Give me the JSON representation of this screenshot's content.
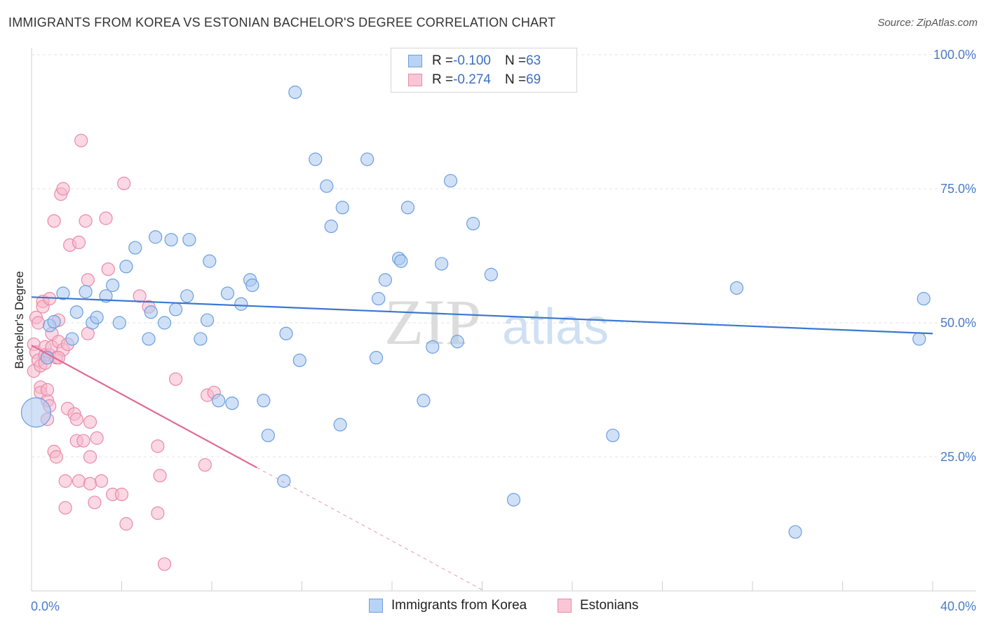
{
  "title": "IMMIGRANTS FROM KOREA VS ESTONIAN BACHELOR'S DEGREE CORRELATION CHART",
  "source": "Source: ZipAtlas.com",
  "watermark": {
    "zip": "ZIP",
    "atlas": "atlas"
  },
  "legend": {
    "rows": [
      {
        "r_label": "R = ",
        "r_value": "-0.100",
        "n_label": "N = ",
        "n_value": "63"
      },
      {
        "r_label": "R = ",
        "r_value": "-0.274",
        "n_label": "N = ",
        "n_value": "69"
      }
    ]
  },
  "colors": {
    "korea_fill": "#a9c8f0",
    "korea_stroke": "#6b9ee0",
    "korea_line": "#3a78d0",
    "eston_fill": "#f7b8cc",
    "eston_stroke": "#e88aa8",
    "eston_line": "#e06a94",
    "grid": "#e3e3e3",
    "axis_text": "#4a7cc9"
  },
  "chart_data": {
    "type": "scatter",
    "title": "IMMIGRANTS FROM KOREA VS ESTONIAN BACHELOR'S DEGREE CORRELATION CHART",
    "xlabel": "",
    "ylabel": "Bachelor's Degree",
    "xlim": [
      0,
      40
    ],
    "ylim": [
      0,
      100
    ],
    "x_tick_labels": [
      "0.0%",
      "40.0%"
    ],
    "y_tick_labels": [
      "25.0%",
      "50.0%",
      "75.0%",
      "100.0%"
    ],
    "y_ticks": [
      25,
      50,
      75,
      100
    ],
    "grid": true,
    "legend_position": "top-center",
    "series": [
      {
        "name": "Immigrants from Korea",
        "points": [
          [
            0.2,
            33.3
          ],
          [
            0.7,
            43.5
          ],
          [
            0.8,
            49.5
          ],
          [
            1.0,
            50.2
          ],
          [
            1.4,
            55.5
          ],
          [
            1.8,
            47.0
          ],
          [
            2.0,
            52.0
          ],
          [
            2.4,
            55.8
          ],
          [
            2.7,
            50.0
          ],
          [
            2.9,
            51.0
          ],
          [
            3.3,
            55.0
          ],
          [
            3.6,
            57.0
          ],
          [
            3.9,
            50.0
          ],
          [
            4.2,
            60.5
          ],
          [
            4.6,
            64.0
          ],
          [
            5.2,
            47.0
          ],
          [
            5.3,
            52.0
          ],
          [
            5.5,
            66.0
          ],
          [
            5.9,
            50.0
          ],
          [
            6.2,
            65.5
          ],
          [
            6.4,
            52.5
          ],
          [
            6.9,
            55.0
          ],
          [
            7.0,
            65.5
          ],
          [
            7.5,
            47.0
          ],
          [
            7.8,
            50.5
          ],
          [
            7.9,
            61.5
          ],
          [
            8.3,
            35.5
          ],
          [
            8.7,
            55.5
          ],
          [
            8.9,
            35.0
          ],
          [
            9.3,
            53.5
          ],
          [
            9.7,
            58.0
          ],
          [
            9.8,
            57.0
          ],
          [
            10.3,
            35.5
          ],
          [
            10.5,
            29.0
          ],
          [
            11.2,
            20.5
          ],
          [
            11.3,
            48.0
          ],
          [
            11.7,
            93.0
          ],
          [
            11.9,
            43.0
          ],
          [
            12.6,
            80.5
          ],
          [
            13.1,
            75.5
          ],
          [
            13.3,
            68.0
          ],
          [
            13.7,
            31.0
          ],
          [
            13.8,
            71.5
          ],
          [
            14.9,
            80.5
          ],
          [
            15.3,
            43.5
          ],
          [
            15.4,
            54.5
          ],
          [
            15.7,
            58.0
          ],
          [
            16.3,
            62.0
          ],
          [
            16.4,
            61.5
          ],
          [
            16.7,
            71.5
          ],
          [
            17.4,
            35.5
          ],
          [
            17.8,
            45.5
          ],
          [
            18.2,
            61.0
          ],
          [
            18.6,
            76.5
          ],
          [
            18.9,
            46.5
          ],
          [
            19.6,
            68.5
          ],
          [
            20.4,
            59.0
          ],
          [
            21.4,
            17.0
          ],
          [
            25.8,
            29.0
          ],
          [
            31.3,
            56.5
          ],
          [
            33.9,
            11.0
          ],
          [
            39.4,
            47.0
          ],
          [
            39.6,
            54.5
          ]
        ],
        "sizes": [
          44,
          20,
          20,
          20,
          20,
          20,
          20,
          20,
          20,
          20,
          20,
          20,
          20,
          20,
          20,
          20,
          20,
          20,
          20,
          20,
          20,
          20,
          20,
          20,
          20,
          20,
          20,
          20,
          20,
          20,
          20,
          20,
          20,
          20,
          20,
          20,
          20,
          20,
          20,
          20,
          20,
          20,
          20,
          20,
          20,
          20,
          20,
          20,
          20,
          20,
          20,
          20,
          20,
          20,
          20,
          20,
          20,
          20,
          20,
          20,
          20,
          20,
          20
        ],
        "trend": {
          "x": [
            0,
            40
          ],
          "y": [
            54.8,
            48.0
          ]
        }
      },
      {
        "name": "Estonians",
        "points": [
          [
            0.1,
            41.0
          ],
          [
            0.1,
            46.0
          ],
          [
            0.2,
            44.5
          ],
          [
            0.2,
            51.0
          ],
          [
            0.3,
            50.0
          ],
          [
            0.3,
            43.0
          ],
          [
            0.4,
            42.0
          ],
          [
            0.4,
            38.0
          ],
          [
            0.4,
            37.0
          ],
          [
            0.5,
            54.0
          ],
          [
            0.5,
            53.0
          ],
          [
            0.6,
            45.5
          ],
          [
            0.6,
            44.0
          ],
          [
            0.7,
            35.5
          ],
          [
            0.7,
            37.5
          ],
          [
            0.7,
            32.0
          ],
          [
            0.8,
            34.5
          ],
          [
            0.8,
            44.0
          ],
          [
            0.8,
            54.5
          ],
          [
            0.9,
            48.0
          ],
          [
            0.9,
            45.5
          ],
          [
            1.0,
            69.0
          ],
          [
            1.0,
            26.0
          ],
          [
            1.1,
            25.0
          ],
          [
            1.1,
            43.5
          ],
          [
            1.2,
            46.5
          ],
          [
            1.2,
            50.5
          ],
          [
            1.3,
            74.0
          ],
          [
            1.4,
            75.0
          ],
          [
            1.4,
            45.0
          ],
          [
            1.5,
            15.5
          ],
          [
            1.5,
            20.5
          ],
          [
            1.6,
            46.0
          ],
          [
            1.6,
            34.0
          ],
          [
            1.7,
            64.5
          ],
          [
            1.9,
            33.0
          ],
          [
            2.0,
            28.0
          ],
          [
            2.0,
            32.0
          ],
          [
            2.1,
            20.5
          ],
          [
            2.1,
            65.0
          ],
          [
            2.2,
            84.0
          ],
          [
            2.3,
            28.0
          ],
          [
            2.4,
            69.0
          ],
          [
            2.5,
            48.0
          ],
          [
            2.5,
            58.0
          ],
          [
            2.6,
            20.0
          ],
          [
            2.6,
            25.0
          ],
          [
            2.6,
            31.5
          ],
          [
            2.8,
            16.5
          ],
          [
            2.9,
            28.5
          ],
          [
            3.1,
            20.5
          ],
          [
            3.3,
            69.5
          ],
          [
            3.4,
            60.0
          ],
          [
            3.6,
            18.0
          ],
          [
            4.0,
            18.0
          ],
          [
            4.1,
            76.0
          ],
          [
            4.2,
            12.5
          ],
          [
            4.8,
            55.0
          ],
          [
            5.2,
            53.0
          ],
          [
            5.6,
            14.5
          ],
          [
            5.6,
            27.0
          ],
          [
            5.7,
            21.5
          ],
          [
            5.9,
            5.0
          ],
          [
            6.4,
            39.5
          ],
          [
            7.7,
            23.5
          ],
          [
            7.8,
            36.5
          ],
          [
            8.1,
            37.0
          ],
          [
            1.2,
            43.5
          ],
          [
            0.6,
            42.5
          ]
        ],
        "sizes": [
          20,
          20,
          20,
          20,
          20,
          20,
          20,
          20,
          20,
          20,
          20,
          20,
          20,
          20,
          20,
          20,
          20,
          20,
          20,
          20,
          20,
          20,
          20,
          20,
          20,
          20,
          20,
          20,
          20,
          20,
          20,
          20,
          20,
          20,
          20,
          20,
          20,
          20,
          20,
          20,
          20,
          20,
          20,
          20,
          20,
          20,
          20,
          20,
          20,
          20,
          20,
          20,
          20,
          20,
          20,
          20,
          20,
          20,
          20,
          20,
          20,
          20,
          20,
          20,
          20,
          20,
          20,
          20,
          20
        ],
        "trend": {
          "x": [
            0,
            10
          ],
          "y": [
            45.8,
            23.0
          ]
        },
        "trend_dashed": {
          "x": [
            10,
            20
          ],
          "y": [
            23.0,
            0.2
          ]
        }
      }
    ]
  }
}
